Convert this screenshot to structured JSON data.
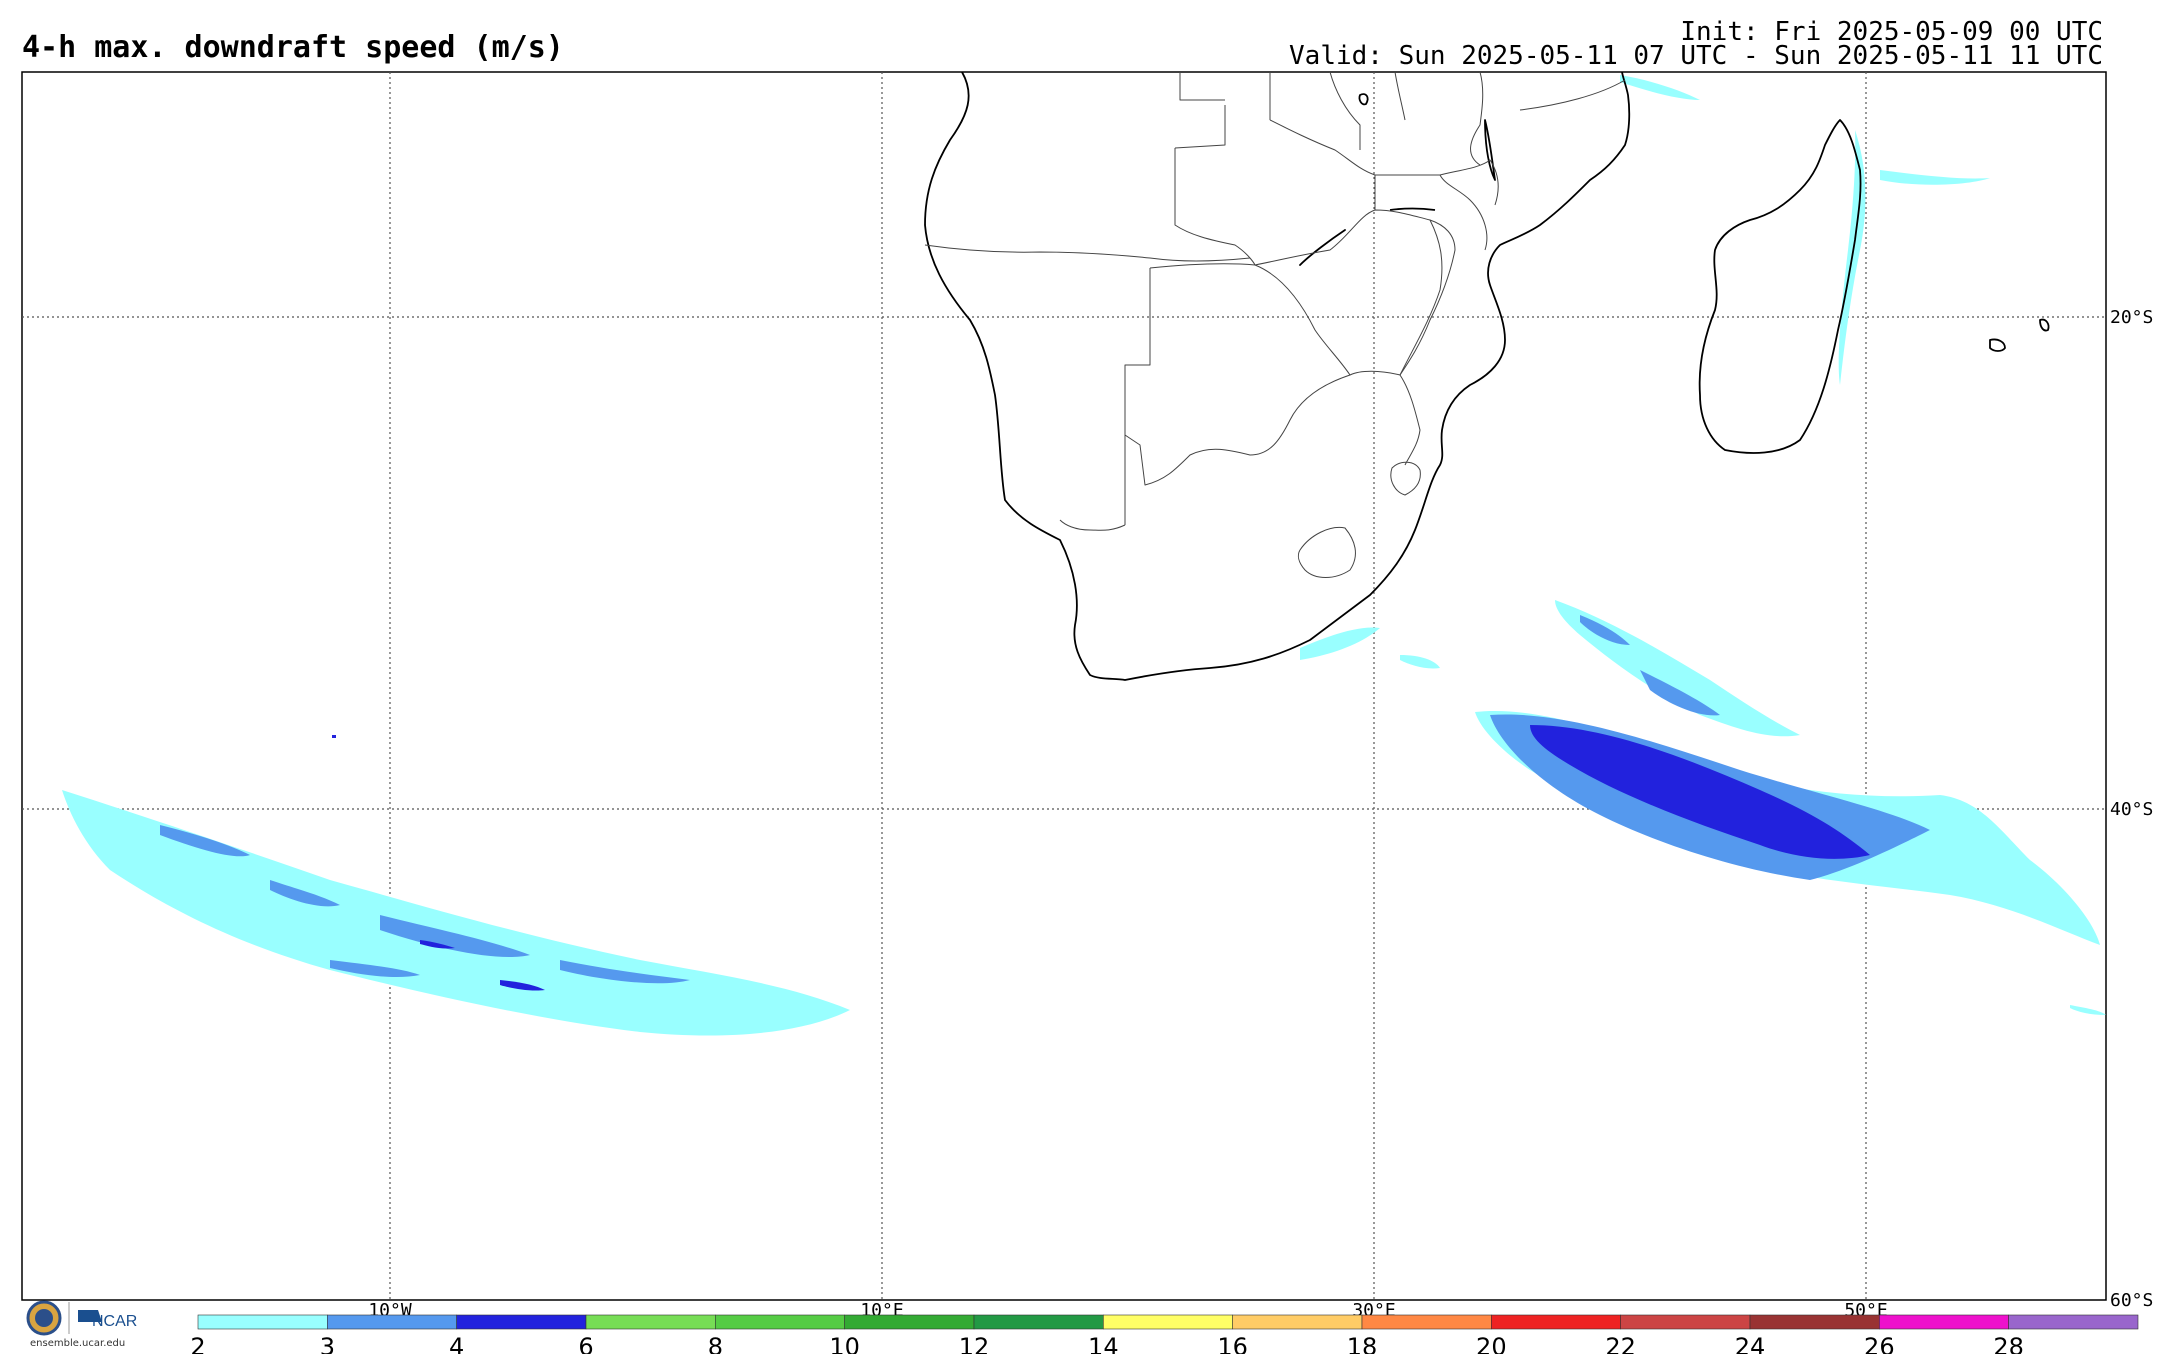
{
  "header": {
    "title": "4-h max. downdraft speed (m/s)",
    "init": "Init: Fri 2025-05-09 00 UTC",
    "valid": "Valid: Sun 2025-05-11 07 UTC - Sun 2025-05-11 11 UTC"
  },
  "map": {
    "longitude_labels": [
      "10°W",
      "10°E",
      "30°E",
      "50°E"
    ],
    "latitude_labels": [
      "20°S",
      "40°S",
      "60°S"
    ],
    "lon_range": [
      -25,
      60
    ],
    "lat_range": [
      -10,
      -60
    ],
    "grid": true
  },
  "colorbar": {
    "tick_labels": [
      "2",
      "3",
      "4",
      "6",
      "8",
      "10",
      "12",
      "14",
      "16",
      "18",
      "20",
      "22",
      "24",
      "26",
      "28"
    ],
    "colors": [
      "#99ffff",
      "#5599ee",
      "#2222dd",
      "#77dd55",
      "#55cc44",
      "#33aa33",
      "#229944",
      "#ffff66",
      "#ffcc66",
      "#ff8844",
      "#ee2222",
      "#cc4444",
      "#993333",
      "#ee11cc",
      "#9966cc"
    ]
  },
  "footer": {
    "logo_text": "NCAR",
    "logo_url": "ensemble.ucar.edu"
  }
}
